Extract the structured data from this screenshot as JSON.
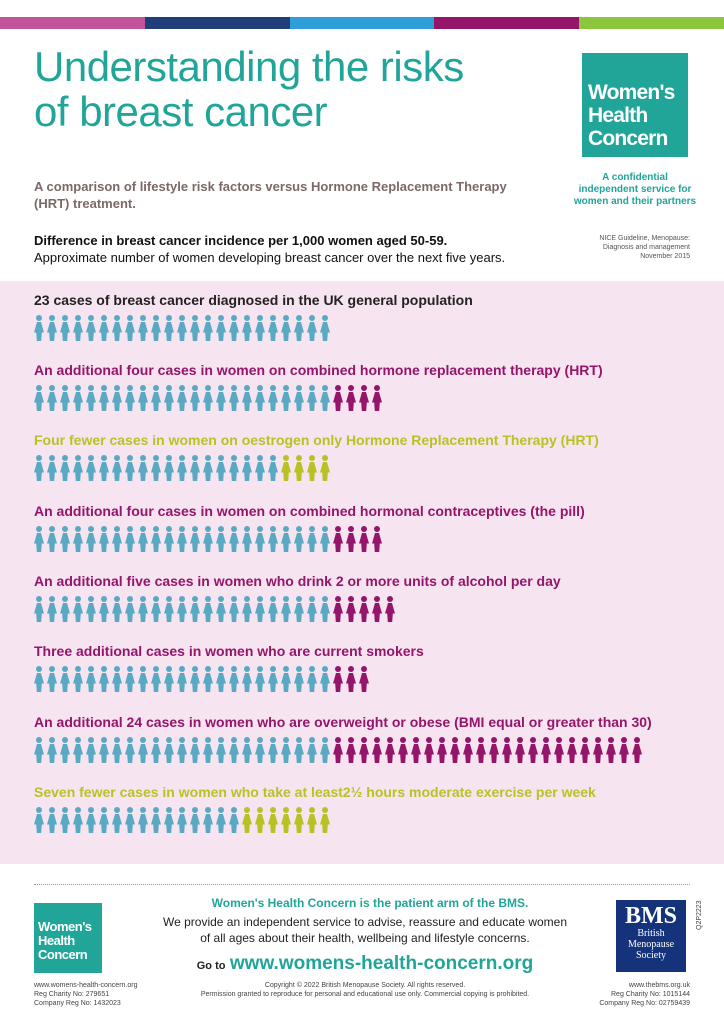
{
  "colors": {
    "teal": "#21a599",
    "blue_figure": "#5aa9c2",
    "plum": "#94156a",
    "olive": "#b8c224",
    "panel_bg": "#f6e4f0",
    "topbar": [
      "#c2549b",
      "#1f3e7a",
      "#2d9ed8",
      "#94156a",
      "#8cc63e"
    ]
  },
  "header": {
    "title": "Understanding the risks of breast cancer",
    "subtitle": "A comparison of lifestyle risk factors versus Hormone Replacement Therapy (HRT) treatment.",
    "difference_bold": "Difference in breast cancer incidence per 1,000 women aged 50-59.",
    "difference_normal": "Approximate number of women developing breast cancer over the next five years.",
    "nice_ref": [
      "NICE Guideline, Menopause:",
      "Diagnosis and management",
      "November 2015"
    ]
  },
  "logo": {
    "lines": [
      "Women's",
      "Health",
      "Concern"
    ],
    "tagline": [
      "A confidential",
      "independent service for",
      "women and their partners"
    ]
  },
  "chart_data": {
    "type": "table",
    "base_cases": 23,
    "rows": [
      {
        "label": "23 cases of breast cancer diagnosed in the UK general population",
        "base": 23,
        "change": 0,
        "color": "#222222"
      },
      {
        "label": "An additional four cases in women on combined hormone replacement therapy (HRT)",
        "base": 23,
        "change": 4,
        "color": "#94156a"
      },
      {
        "label": "Four fewer  cases in women on oestrogen only Hormone Replacement Therapy (HRT)",
        "base": 23,
        "change": -4,
        "color": "#b8c224"
      },
      {
        "label": "An additional four cases in women on combined hormonal contraceptives (the pill)",
        "base": 23,
        "change": 4,
        "color": "#94156a"
      },
      {
        "label": "An additional five cases in women who drink 2 or more units of alcohol per day",
        "base": 23,
        "change": 5,
        "color": "#94156a"
      },
      {
        "label": "Three additional cases in women who are current smokers",
        "base": 23,
        "change": 3,
        "color": "#94156a"
      },
      {
        "label": "An additional 24 cases in women who are overweight or obese (BMI equal or greater than 30)",
        "base": 23,
        "change": 24,
        "color": "#94156a"
      },
      {
        "label": "Seven fewer cases in women who take at least2½ hours moderate exercise per week",
        "base": 23,
        "change": -7,
        "color": "#b8c224"
      }
    ]
  },
  "footer": {
    "patient_arm": "Women's Health Concern is the patient arm of the BMS.",
    "provide_lines": [
      "We provide an independent service to advise, reassure and educate women",
      "of all ages about their health, wellbeing and lifestyle concerns."
    ],
    "goto_label": "Go to",
    "goto_url": "www.womens-health-concern.org",
    "copyright_lines": [
      "Copyright © 2022 British Menopause Society.  All rights reserved.",
      "Permission granted to reproduce for personal and educational use only. Commercial copying is prohibited."
    ],
    "left_meta": [
      "www.womens-health-concern.org",
      "Reg Charity No: 279651",
      "Company Reg No: 1432023"
    ],
    "right_meta": [
      "www.thebms.org.uk",
      "Reg Charity No: 1015144",
      "Company Reg No: 02759439"
    ],
    "bms_logo": {
      "big": "BMS",
      "lines": [
        "British",
        "Menopause",
        "Society"
      ]
    },
    "ref_code": "Q2P2223"
  }
}
